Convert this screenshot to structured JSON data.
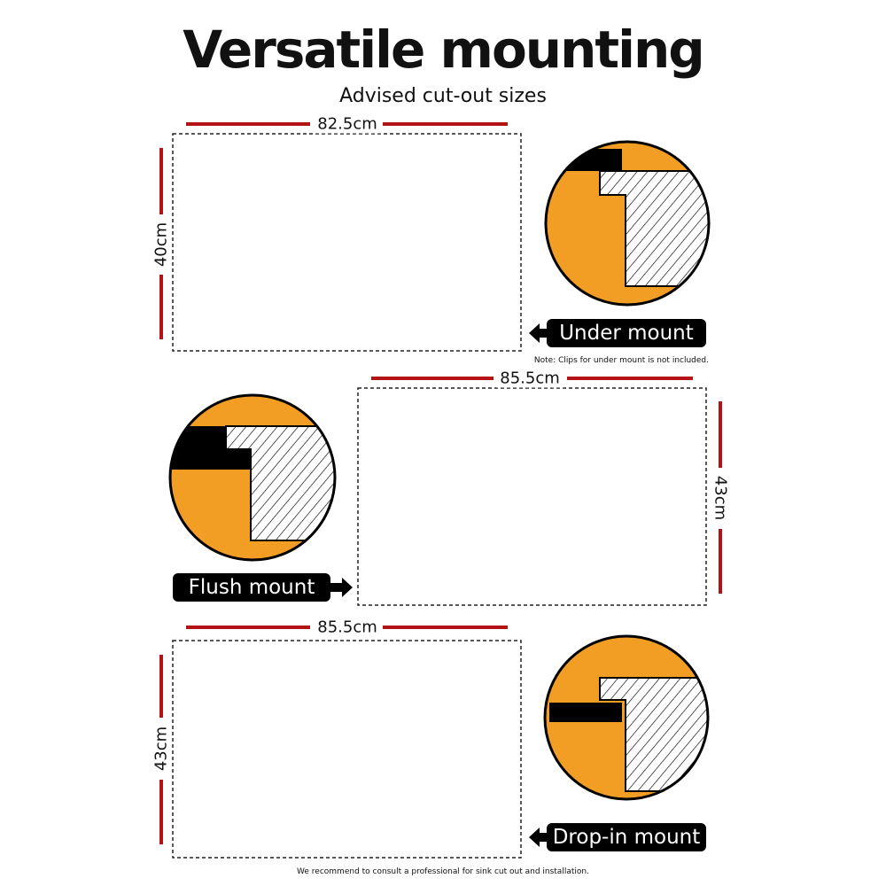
{
  "title": "Versatile mounting",
  "subtitle": "Advised cut-out sizes",
  "colors": {
    "dimension_line": "#b31217",
    "detail_fill": "#f29e24",
    "label_bg": "#000000"
  },
  "sections": [
    {
      "width": "82.5cm",
      "height": "40cm",
      "label": "Under mount",
      "arrow": "left",
      "note": "Note: Clips for under mount is not included."
    },
    {
      "width": "85.5cm",
      "height": "43cm",
      "label": "Flush mount",
      "arrow": "right"
    },
    {
      "width": "85.5cm",
      "height": "43cm",
      "label": "Drop-in mount",
      "arrow": "left"
    }
  ],
  "footer": "We recommend to consult a professional for sink cut out and installation."
}
